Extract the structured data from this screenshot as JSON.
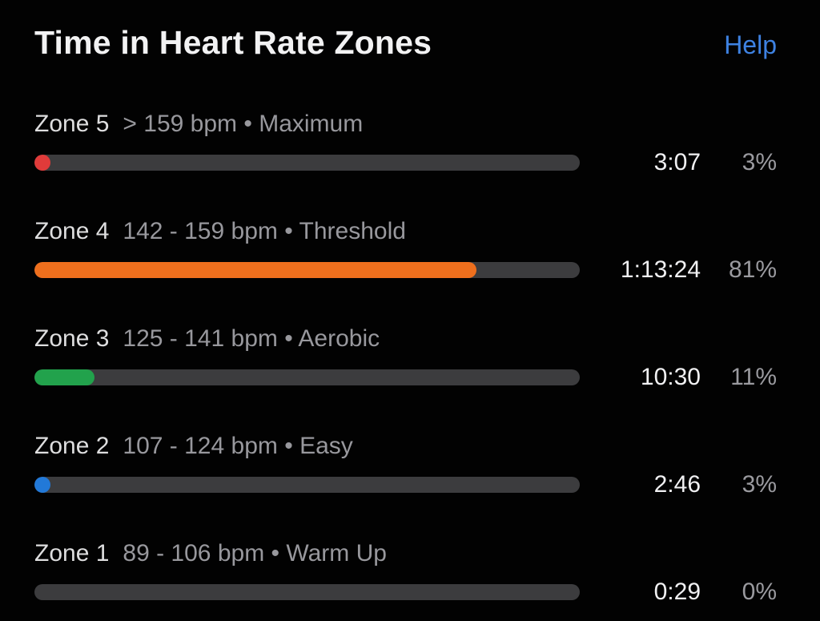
{
  "header": {
    "title": "Time in Heart Rate Zones",
    "help_label": "Help"
  },
  "separator": "•",
  "zones": [
    {
      "name": "Zone 5",
      "range": "> 159 bpm",
      "label": "Maximum",
      "time": "3:07",
      "percent": "3%",
      "percent_value": 3,
      "color": "#e03b3a"
    },
    {
      "name": "Zone 4",
      "range": "142 - 159 bpm",
      "label": "Threshold",
      "time": "1:13:24",
      "percent": "81%",
      "percent_value": 81,
      "color": "#ee6f1d"
    },
    {
      "name": "Zone 3",
      "range": "125 - 141 bpm",
      "label": "Aerobic",
      "time": "10:30",
      "percent": "11%",
      "percent_value": 11,
      "color": "#22a24c"
    },
    {
      "name": "Zone 2",
      "range": "107 - 124 bpm",
      "label": "Easy",
      "time": "2:46",
      "percent": "3%",
      "percent_value": 3,
      "color": "#2279d8"
    },
    {
      "name": "Zone 1",
      "range": "89 - 106 bpm",
      "label": "Warm Up",
      "time": "0:29",
      "percent": "0%",
      "percent_value": 0,
      "color": "#3c3c3e"
    }
  ],
  "colors": {
    "background": "#000000",
    "bar_track": "#3c3c3e",
    "zone5_red": "#e03b3a",
    "zone4_orange": "#ee6f1d",
    "zone3_green": "#22a24c",
    "zone2_blue": "#2279d8",
    "title_text": "#f2f2f3",
    "secondary_text": "#98989d",
    "help_blue": "#3e82e2"
  },
  "chart_data": {
    "type": "bar",
    "orientation": "horizontal",
    "title": "Time in Heart Rate Zones",
    "categories": [
      "Zone 5",
      "Zone 4",
      "Zone 3",
      "Zone 2",
      "Zone 1"
    ],
    "series": [
      {
        "name": "percent_of_workout",
        "values": [
          3,
          81,
          11,
          3,
          0
        ]
      },
      {
        "name": "time_in_zone",
        "values": [
          "3:07",
          "1:13:24",
          "10:30",
          "2:46",
          "0:29"
        ]
      }
    ],
    "bar_colors": [
      "#e03b3a",
      "#ee6f1d",
      "#22a24c",
      "#2279d8",
      "#3c3c3e"
    ],
    "xlim": [
      0,
      100
    ],
    "grid": false,
    "legend": false
  }
}
